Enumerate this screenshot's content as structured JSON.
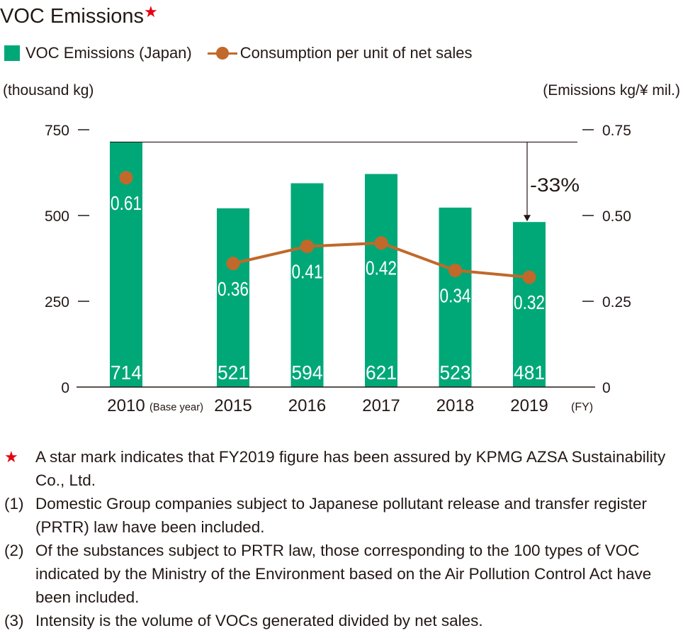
{
  "title": "VOC Emissions",
  "title_mark": "★",
  "legend": {
    "bar_label": "VOC Emissions (Japan)",
    "line_label": "Consumption per unit of net sales"
  },
  "colors": {
    "bar": "#00a878",
    "line": "#c0692b",
    "text": "#231815",
    "star": "#e60012"
  },
  "chart_data": {
    "type": "bar",
    "categories": [
      "2010",
      "2015",
      "2016",
      "2017",
      "2018",
      "2019"
    ],
    "category_note": {
      "index": 0,
      "text": "(Base year)"
    },
    "x_unit": "(FY)",
    "ylabel": "(thousand kg)",
    "ylabel_right": "(Emissions kg/¥ mil.)",
    "ylim": [
      0,
      750
    ],
    "ylim_right": [
      0,
      0.75
    ],
    "yticks": [
      "0",
      "250",
      "500",
      "750"
    ],
    "yticks_right": [
      "0",
      "0.25",
      "0.50",
      "0.75"
    ],
    "series": [
      {
        "name": "VOC Emissions (Japan)",
        "type": "bar",
        "axis": "left",
        "values": [
          714,
          521,
          594,
          621,
          523,
          481
        ],
        "labels": [
          "714",
          "521",
          "594",
          "621",
          "523",
          "481"
        ]
      },
      {
        "name": "Consumption per unit of net sales",
        "type": "line",
        "axis": "right",
        "values": [
          0.61,
          0.36,
          0.41,
          0.42,
          0.34,
          0.32
        ],
        "labels": [
          "0.61",
          "0.36",
          "0.41",
          "0.42",
          "0.34",
          "0.32"
        ],
        "connect_from_index": 1
      }
    ],
    "annotation": {
      "text": "-33%",
      "from_index": 0,
      "to_index": 5
    }
  },
  "notes": [
    {
      "mark": "★",
      "text": "A star mark indicates that FY2019 figure has been assured by KPMG AZSA Sustainability Co., Ltd."
    },
    {
      "mark": "(1)",
      "text": "Domestic Group companies subject to Japanese pollutant release and transfer register (PRTR) law have been included."
    },
    {
      "mark": "(2)",
      "text": "Of the substances subject to PRTR law, those corresponding to the 100 types of VOC indicated by the Ministry of the Environment based on the Air Pollution Control Act have been included."
    },
    {
      "mark": "(3)",
      "text": "Intensity is the volume of VOCs generated divided by net sales."
    }
  ]
}
